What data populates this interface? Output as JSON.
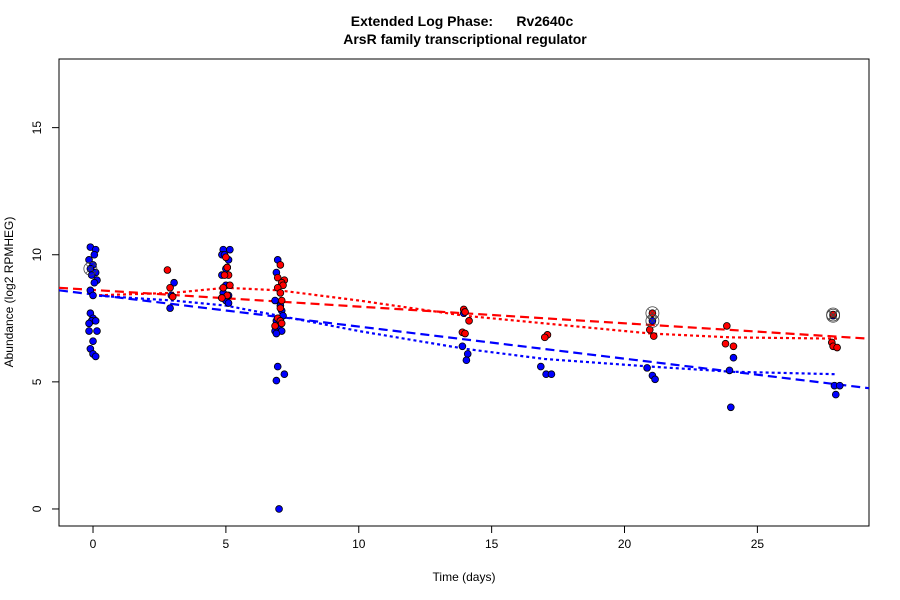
{
  "chart_data": {
    "type": "scatter",
    "title": "Extended Log Phase:      Rv2640c",
    "subtitle": "ArsR family transcriptional regulator",
    "xlabel": "Time  (days)",
    "ylabel": "Abundance  (log2 RPMHEG)",
    "xlim": [
      -1.28,
      29.2
    ],
    "ylim": [
      -0.67,
      17.7
    ],
    "xticks": [
      0,
      5,
      10,
      15,
      20,
      25
    ],
    "yticks": [
      0,
      5,
      10,
      15
    ],
    "grid": false,
    "colors": {
      "red": "#ff0000",
      "blue": "#0000ff"
    },
    "series": [
      {
        "color": "#0000ff",
        "points": [
          [
            -0.1,
            10.3
          ],
          [
            0.1,
            10.2
          ],
          [
            0.05,
            10.0
          ],
          [
            -0.15,
            9.8
          ],
          [
            0.0,
            9.6
          ],
          [
            -0.1,
            9.45
          ],
          [
            0.1,
            9.3
          ],
          [
            -0.05,
            9.2
          ],
          [
            0.15,
            9.0
          ],
          [
            0.05,
            8.9
          ],
          [
            -0.1,
            8.6
          ],
          [
            0.0,
            8.4
          ],
          [
            -0.1,
            7.7
          ],
          [
            0.0,
            7.5
          ],
          [
            -0.05,
            7.4
          ],
          [
            0.1,
            7.4
          ],
          [
            -0.15,
            7.3
          ],
          [
            0.15,
            7.0
          ],
          [
            -0.15,
            7.0
          ],
          [
            0.0,
            6.6
          ],
          [
            -0.1,
            6.3
          ],
          [
            0.0,
            6.1
          ],
          [
            0.1,
            6.0
          ],
          [
            3.05,
            8.9
          ],
          [
            2.95,
            8.4
          ],
          [
            2.9,
            7.9
          ],
          [
            4.9,
            10.2
          ],
          [
            5.15,
            10.2
          ],
          [
            4.85,
            10.0
          ],
          [
            4.95,
            10.0
          ],
          [
            5.1,
            9.8
          ],
          [
            5.05,
            9.5
          ],
          [
            5.0,
            9.45
          ],
          [
            4.85,
            9.2
          ],
          [
            5.0,
            8.8
          ],
          [
            4.9,
            8.5
          ],
          [
            5.1,
            8.4
          ],
          [
            4.85,
            8.3
          ],
          [
            5.0,
            8.2
          ],
          [
            5.1,
            8.1
          ],
          [
            6.95,
            9.8
          ],
          [
            6.9,
            9.3
          ],
          [
            6.85,
            8.2
          ],
          [
            7.05,
            8.0
          ],
          [
            7.1,
            7.8
          ],
          [
            7.15,
            7.6
          ],
          [
            6.9,
            7.4
          ],
          [
            7.0,
            7.2
          ],
          [
            6.85,
            7.0
          ],
          [
            7.1,
            7.0
          ],
          [
            6.9,
            6.9
          ],
          [
            6.95,
            5.6
          ],
          [
            7.2,
            5.3
          ],
          [
            6.9,
            5.05
          ],
          [
            7.0,
            0.0
          ],
          [
            13.95,
            7.7
          ],
          [
            13.9,
            6.4
          ],
          [
            14.1,
            6.1
          ],
          [
            14.05,
            5.85
          ],
          [
            16.85,
            5.6
          ],
          [
            17.05,
            5.3
          ],
          [
            17.25,
            5.3
          ],
          [
            21.05,
            7.4
          ],
          [
            20.85,
            5.55
          ],
          [
            21.05,
            5.25
          ],
          [
            21.15,
            5.1
          ],
          [
            24.1,
            5.95
          ],
          [
            23.95,
            5.45
          ],
          [
            24.0,
            4.0
          ],
          [
            27.85,
            7.6
          ],
          [
            27.9,
            4.85
          ],
          [
            28.1,
            4.85
          ],
          [
            27.95,
            4.5
          ]
        ]
      },
      {
        "color": "#ff0000",
        "points": [
          [
            2.8,
            9.4
          ],
          [
            2.9,
            8.7
          ],
          [
            3.0,
            8.35
          ],
          [
            5.0,
            9.9
          ],
          [
            5.05,
            9.5
          ],
          [
            5.1,
            9.2
          ],
          [
            4.95,
            9.2
          ],
          [
            5.15,
            8.8
          ],
          [
            4.9,
            8.7
          ],
          [
            5.05,
            8.4
          ],
          [
            4.85,
            8.3
          ],
          [
            7.05,
            9.6
          ],
          [
            6.95,
            9.1
          ],
          [
            7.2,
            9.0
          ],
          [
            7.1,
            8.9
          ],
          [
            7.15,
            8.8
          ],
          [
            6.95,
            8.7
          ],
          [
            7.05,
            8.5
          ],
          [
            7.1,
            8.2
          ],
          [
            7.05,
            7.9
          ],
          [
            6.95,
            7.5
          ],
          [
            7.05,
            7.4
          ],
          [
            7.1,
            7.3
          ],
          [
            6.85,
            7.2
          ],
          [
            13.95,
            7.85
          ],
          [
            14.0,
            7.75
          ],
          [
            14.15,
            7.4
          ],
          [
            13.9,
            6.95
          ],
          [
            14.0,
            6.9
          ],
          [
            17.1,
            6.85
          ],
          [
            17.0,
            6.75
          ],
          [
            21.05,
            7.7
          ],
          [
            20.95,
            7.05
          ],
          [
            21.1,
            6.8
          ],
          [
            23.85,
            7.2
          ],
          [
            23.8,
            6.5
          ],
          [
            24.1,
            6.4
          ],
          [
            27.85,
            7.65
          ],
          [
            27.8,
            6.55
          ],
          [
            27.85,
            6.4
          ],
          [
            28.0,
            6.35
          ]
        ]
      }
    ],
    "circled_points": [
      [
        -0.1,
        9.45
      ],
      [
        21.05,
        7.7
      ],
      [
        21.05,
        7.4
      ],
      [
        27.85,
        7.65
      ],
      [
        27.85,
        7.6
      ]
    ],
    "fit_lines": [
      {
        "color": "#ff0000",
        "style": "dashed",
        "points": [
          [
            -1.28,
            8.7
          ],
          [
            29.2,
            6.7
          ]
        ]
      },
      {
        "color": "#0000ff",
        "style": "dashed",
        "points": [
          [
            -1.28,
            8.6
          ],
          [
            29.2,
            4.75
          ]
        ]
      },
      {
        "color": "#ff0000",
        "style": "dotted",
        "points": [
          [
            0,
            8.4
          ],
          [
            3,
            8.5
          ],
          [
            5,
            8.7
          ],
          [
            7,
            8.6
          ],
          [
            10,
            8.2
          ],
          [
            14,
            7.6
          ],
          [
            17,
            7.3
          ],
          [
            21,
            6.9
          ],
          [
            24,
            6.75
          ],
          [
            28,
            6.7
          ]
        ]
      },
      {
        "color": "#0000ff",
        "style": "dotted",
        "points": [
          [
            0,
            8.4
          ],
          [
            3,
            8.2
          ],
          [
            5,
            8.0
          ],
          [
            7,
            7.6
          ],
          [
            10,
            7.0
          ],
          [
            14,
            6.3
          ],
          [
            17,
            5.9
          ],
          [
            21,
            5.6
          ],
          [
            24,
            5.4
          ],
          [
            28,
            5.3
          ]
        ]
      }
    ]
  }
}
